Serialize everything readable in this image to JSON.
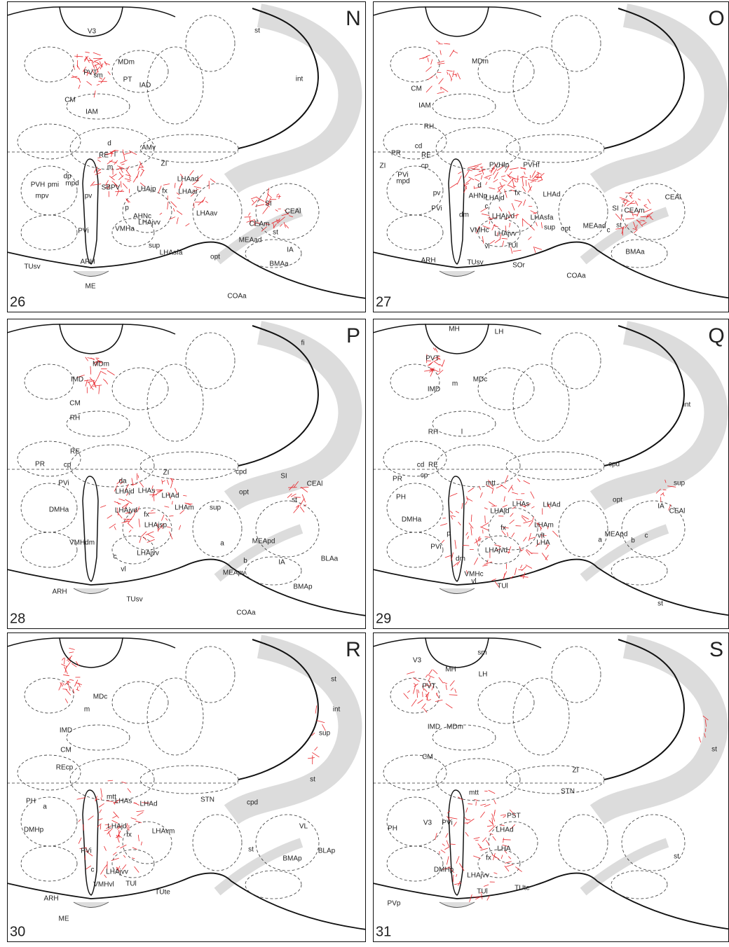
{
  "panels": [
    {
      "letter": "N",
      "number": "26",
      "labels": [
        "V3",
        "PVT",
        "MDm",
        "PT",
        "IAD",
        "sm",
        "CM",
        "IAM",
        "d",
        "RE",
        "l",
        "AMv",
        "m",
        "ZI",
        "dp",
        "mpd",
        "PVH",
        "pmi",
        "mpv",
        "pv",
        "SBPV",
        "LHAjp",
        "fx",
        "LHAad",
        "LHAai",
        "p",
        "AHNc",
        "LHAav",
        "SI",
        "CEAm",
        "CEAl",
        "st",
        "MEAad",
        "IA",
        "opt",
        "PVi",
        "VMHa",
        "LHAjvv",
        "sup",
        "LHAsfa",
        "ARH",
        "TUsv",
        "BMAa",
        "ME",
        "COAa",
        "st",
        "int"
      ]
    },
    {
      "letter": "O",
      "number": "27",
      "labels": [
        "MDm",
        "CM",
        "IAM",
        "RH",
        "PR",
        "cd",
        "RE",
        "cp",
        "ZI",
        "PVi",
        "mpd",
        "pv",
        "PVHlp",
        "PVHf",
        "LHAd",
        "d",
        "AHNp",
        "fx",
        "c",
        "dm",
        "LHAjd",
        "LHAjvd",
        "LHAsfa",
        "PVi",
        "VMHc",
        "LHAjvv",
        "sup",
        "opt",
        "vl",
        "TUl",
        "TUsv",
        "SOr",
        "ARH",
        "SI",
        "CEAm",
        "st",
        "c",
        "CEAl",
        "MEAad",
        "BMAa",
        "COAa"
      ]
    },
    {
      "letter": "P",
      "number": "28",
      "labels": [
        "fi",
        "MDm",
        "IMD",
        "CM",
        "RH",
        "RE",
        "PR",
        "cp",
        "PVi",
        "da",
        "ZI",
        "LHAd",
        "LHAs",
        "LHAjd",
        "DMHa",
        "fx",
        "LHAm",
        "sup",
        "opt",
        "cpd",
        "SI",
        "CEAl",
        "st",
        "LHAjvd",
        "LHAjsp",
        "LHAjvv",
        "VMHdm",
        "c",
        "vl",
        "a",
        "b",
        "MEApd",
        "IA",
        "BLAa",
        "MEApv",
        "BMAp",
        "ARH",
        "TUsv",
        "COAa"
      ]
    },
    {
      "letter": "Q",
      "number": "29",
      "labels": [
        "MH",
        "LH",
        "PVT",
        "MDc",
        "IMD",
        "m",
        "int",
        "RH",
        "l",
        "cd",
        "RE",
        "cp",
        "PR",
        "mtt",
        "PH",
        "LHAs",
        "LHAjd",
        "LHAd",
        "sup",
        "cpd",
        "opt",
        "IA",
        "CEAl",
        "DMHa",
        "fx",
        "LHAm",
        "vlt",
        "LHA",
        "PVi",
        "p",
        "a",
        "MEApd",
        "b",
        "c",
        "dm",
        "LHAjvd",
        "VMHc",
        "vl",
        "TUl",
        "st"
      ]
    },
    {
      "letter": "R",
      "number": "30",
      "labels": [
        "st",
        "MDc",
        "m",
        "int",
        "IMD",
        "CM",
        "REcp",
        "sup",
        "st",
        "mtt",
        "PH",
        "STN",
        "cpd",
        "LHAs",
        "LHAd",
        "a",
        "DMHp",
        "LHAjd",
        "fx",
        "LHAvm",
        "VL",
        "st",
        "BLAp",
        "BMAp",
        "PVi",
        "c",
        "LHAjvv",
        "TUl",
        "VMHvl",
        "TUte",
        "ARH",
        "ME"
      ]
    },
    {
      "letter": "S",
      "number": "31",
      "labels": [
        "sm",
        "V3",
        "MH",
        "LH",
        "PVT",
        "IMD",
        "MDm",
        "st",
        "CM",
        "ZI",
        "STN",
        "mtt",
        "V3",
        "PVi",
        "PH",
        "PST",
        "LHAd",
        "LHA",
        "fx",
        "st",
        "DMHp",
        "LHAjvv",
        "TUl",
        "TUte",
        "PVp"
      ]
    }
  ]
}
